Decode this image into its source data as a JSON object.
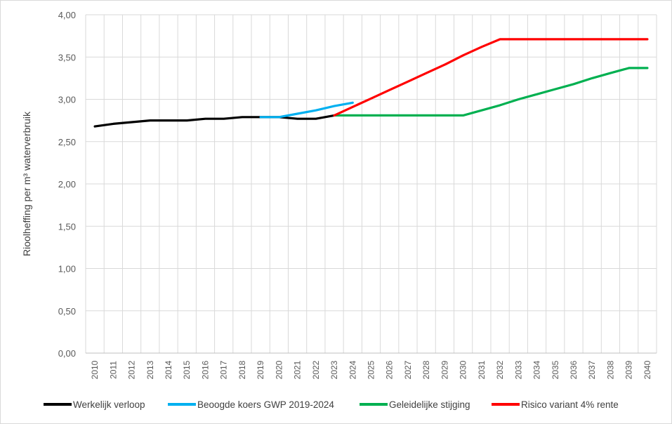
{
  "chart_data": {
    "type": "line",
    "title": "",
    "xlabel": "",
    "ylabel": "Rioolheffing per m³ waterverbruik",
    "ylim": [
      0,
      4
    ],
    "grid": true,
    "legend_position": "bottom",
    "y_ticks": [
      "0,00",
      "0,50",
      "1,00",
      "1,50",
      "2,00",
      "2,50",
      "3,00",
      "3,50",
      "4,00"
    ],
    "y_tick_values": [
      0,
      0.5,
      1,
      1.5,
      2,
      2.5,
      3,
      3.5,
      4
    ],
    "categories": [
      "2010",
      "2011",
      "2012",
      "2013",
      "2014",
      "2015",
      "2016",
      "2017",
      "2018",
      "2019",
      "2020",
      "2021",
      "2022",
      "2023",
      "2024",
      "2025",
      "2026",
      "2027",
      "2028",
      "2029",
      "2030",
      "2031",
      "2032",
      "2033",
      "2034",
      "2035",
      "2036",
      "2037",
      "2038",
      "2039",
      "2040"
    ],
    "series": [
      {
        "name": "Werkelijk verloop",
        "color": "#000000",
        "x": [
          2010,
          2011,
          2012,
          2013,
          2014,
          2015,
          2016,
          2017,
          2018,
          2019,
          2020,
          2021,
          2022,
          2023
        ],
        "values": [
          2.68,
          2.71,
          2.73,
          2.75,
          2.75,
          2.75,
          2.77,
          2.77,
          2.79,
          2.79,
          2.79,
          2.77,
          2.77,
          2.81
        ]
      },
      {
        "name": "Beoogde koers GWP 2019-2024",
        "color": "#00b0f0",
        "x": [
          2019,
          2020,
          2021,
          2022,
          2023,
          2024
        ],
        "values": [
          2.79,
          2.79,
          2.83,
          2.87,
          2.92,
          2.96
        ]
      },
      {
        "name": "Geleidelijke stijging",
        "color": "#00b050",
        "x": [
          2023,
          2024,
          2025,
          2026,
          2027,
          2028,
          2029,
          2030,
          2031,
          2032,
          2033,
          2034,
          2035,
          2036,
          2037,
          2038,
          2039,
          2040
        ],
        "values": [
          2.81,
          2.81,
          2.81,
          2.81,
          2.81,
          2.81,
          2.81,
          2.81,
          2.87,
          2.93,
          3.0,
          3.06,
          3.12,
          3.18,
          3.25,
          3.31,
          3.37,
          3.37
        ]
      },
      {
        "name": "Risico variant 4% rente",
        "color": "#ff0000",
        "x": [
          2023,
          2024,
          2025,
          2026,
          2027,
          2028,
          2029,
          2030,
          2031,
          2032,
          2033,
          2034,
          2035,
          2036,
          2037,
          2038,
          2039,
          2040
        ],
        "values": [
          2.81,
          2.91,
          3.01,
          3.11,
          3.21,
          3.31,
          3.41,
          3.52,
          3.62,
          3.71,
          3.71,
          3.71,
          3.71,
          3.71,
          3.71,
          3.71,
          3.71,
          3.71
        ]
      }
    ]
  }
}
